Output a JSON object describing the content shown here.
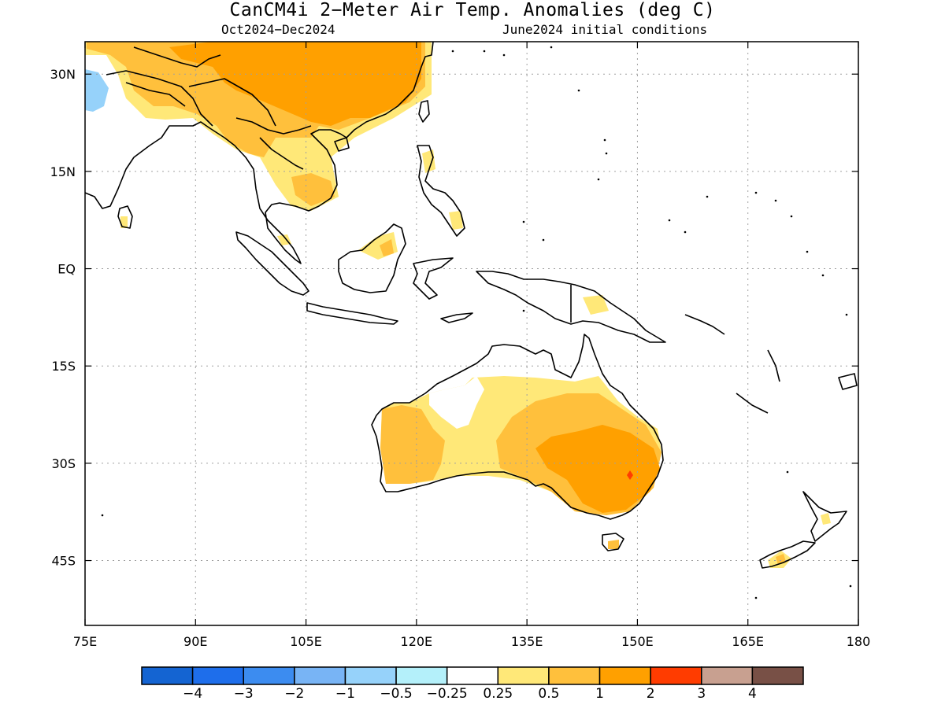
{
  "title": "CanCM4i 2−Meter Air Temp. Anomalies (deg C)",
  "subtitle_left": "Oct2024−Dec2024",
  "subtitle_right": "June2024 initial conditions",
  "map": {
    "projection": "equirectangular",
    "lon_range": [
      75,
      180
    ],
    "lat_range": [
      -55,
      35
    ],
    "lon_ticks": [
      {
        "value": 75,
        "label": "75E"
      },
      {
        "value": 90,
        "label": "90E"
      },
      {
        "value": 105,
        "label": "105E"
      },
      {
        "value": 120,
        "label": "120E"
      },
      {
        "value": 135,
        "label": "135E"
      },
      {
        "value": 150,
        "label": "150E"
      },
      {
        "value": 165,
        "label": "165E"
      },
      {
        "value": 180,
        "label": "180"
      }
    ],
    "lat_ticks": [
      {
        "value": 30,
        "label": "30N"
      },
      {
        "value": 15,
        "label": "15N"
      },
      {
        "value": 0,
        "label": "EQ"
      },
      {
        "value": -15,
        "label": "15S"
      },
      {
        "value": -30,
        "label": "30S"
      },
      {
        "value": -45,
        "label": "45S"
      }
    ],
    "grid": "dotted"
  },
  "colorbar": {
    "colors": [
      "#1464d2",
      "#1e6eeb",
      "#3c8cf0",
      "#78b4f5",
      "#96d2fa",
      "#b4f0fa",
      "#ffffff",
      "#ffe878",
      "#ffc03c",
      "#ffa000",
      "#ff3c00",
      "#c8a090",
      "#785046"
    ],
    "labels": [
      "−4",
      "−3",
      "−2",
      "−1",
      "−0.5",
      "−0.25",
      "0.25",
      "0.5",
      "1",
      "2",
      "3",
      "4"
    ]
  },
  "anomaly_regions": [
    {
      "name": "China / Tibet",
      "value": 1
    },
    {
      "name": "Indochina",
      "value": 0.5
    },
    {
      "name": "Western Australia",
      "value": 1
    },
    {
      "name": "Eastern Australia",
      "value": 1
    },
    {
      "name": "Central Australia",
      "value": 0.5
    },
    {
      "name": "New Zealand South Island",
      "value": 0.5
    },
    {
      "name": "Pakistan",
      "value": -0.5
    }
  ],
  "style": {
    "coastline": "#000000",
    "grid": "#a0a0a0"
  }
}
